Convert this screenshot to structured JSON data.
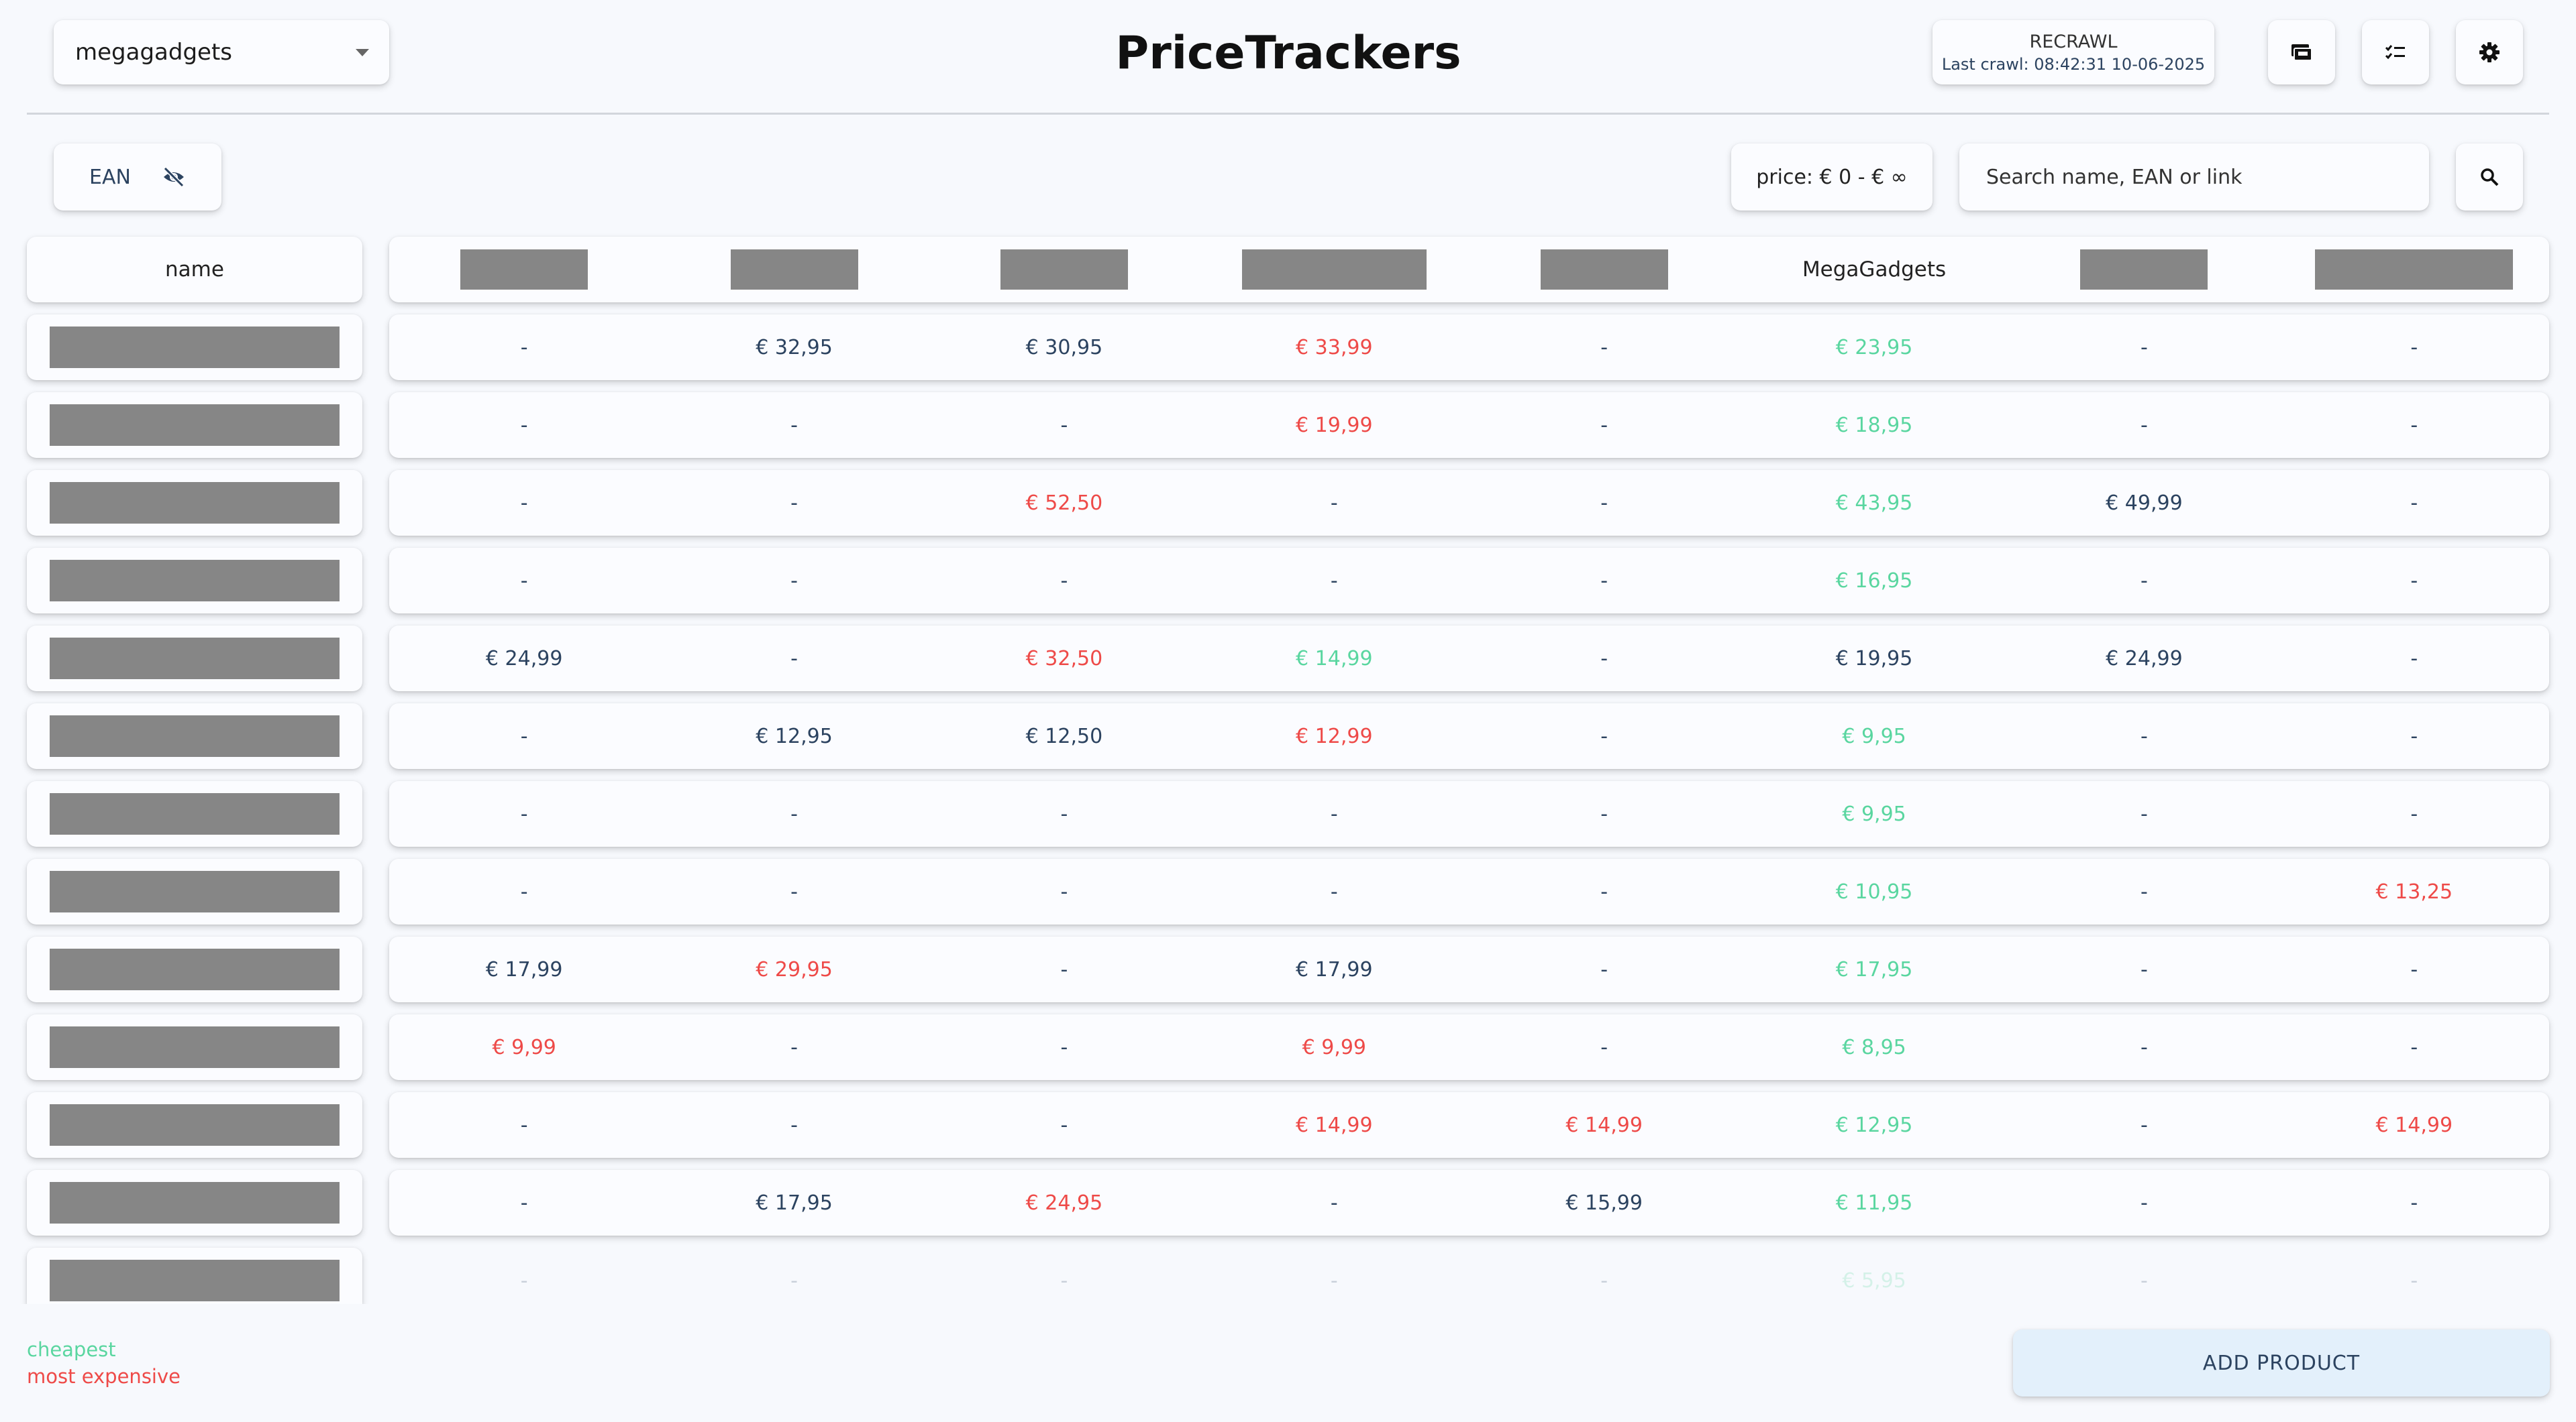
{
  "header": {
    "store_select": "megagadgets",
    "title": "PriceTrackers",
    "recrawl_label": "RECRAWL",
    "last_crawl": "Last crawl: 08:42:31 10-06-2025",
    "icons": [
      "card-icon",
      "checklist-icon",
      "gear-icon"
    ]
  },
  "toolbar": {
    "ean_label": "EAN",
    "ean_icon": "eye-off-icon",
    "price_filter": "price: € 0 - € ∞",
    "search_placeholder": "Search name, EAN or link",
    "search_icon": "search-icon"
  },
  "table": {
    "name_header": "name",
    "columns": [
      "",
      "",
      "",
      "",
      "",
      "MegaGadgets",
      "",
      ""
    ],
    "rows": [
      [
        [
          "-",
          "n"
        ],
        [
          "€ 32,95",
          "n"
        ],
        [
          "€ 30,95",
          "n"
        ],
        [
          "€ 33,99",
          "e"
        ],
        [
          "-",
          "n"
        ],
        [
          "€ 23,95",
          "c"
        ],
        [
          "-",
          "n"
        ],
        [
          "-",
          "n"
        ]
      ],
      [
        [
          "-",
          "n"
        ],
        [
          "-",
          "n"
        ],
        [
          "-",
          "n"
        ],
        [
          "€ 19,99",
          "e"
        ],
        [
          "-",
          "n"
        ],
        [
          "€ 18,95",
          "c"
        ],
        [
          "-",
          "n"
        ],
        [
          "-",
          "n"
        ]
      ],
      [
        [
          "-",
          "n"
        ],
        [
          "-",
          "n"
        ],
        [
          "€ 52,50",
          "e"
        ],
        [
          "-",
          "n"
        ],
        [
          "-",
          "n"
        ],
        [
          "€ 43,95",
          "c"
        ],
        [
          "€ 49,99",
          "n"
        ],
        [
          "-",
          "n"
        ]
      ],
      [
        [
          "-",
          "n"
        ],
        [
          "-",
          "n"
        ],
        [
          "-",
          "n"
        ],
        [
          "-",
          "n"
        ],
        [
          "-",
          "n"
        ],
        [
          "€ 16,95",
          "c"
        ],
        [
          "-",
          "n"
        ],
        [
          "-",
          "n"
        ]
      ],
      [
        [
          "€ 24,99",
          "n"
        ],
        [
          "-",
          "n"
        ],
        [
          "€ 32,50",
          "e"
        ],
        [
          "€ 14,99",
          "c"
        ],
        [
          "-",
          "n"
        ],
        [
          "€ 19,95",
          "n"
        ],
        [
          "€ 24,99",
          "n"
        ],
        [
          "-",
          "n"
        ]
      ],
      [
        [
          "-",
          "n"
        ],
        [
          "€ 12,95",
          "n"
        ],
        [
          "€ 12,50",
          "n"
        ],
        [
          "€ 12,99",
          "e"
        ],
        [
          "-",
          "n"
        ],
        [
          "€ 9,95",
          "c"
        ],
        [
          "-",
          "n"
        ],
        [
          "-",
          "n"
        ]
      ],
      [
        [
          "-",
          "n"
        ],
        [
          "-",
          "n"
        ],
        [
          "-",
          "n"
        ],
        [
          "-",
          "n"
        ],
        [
          "-",
          "n"
        ],
        [
          "€ 9,95",
          "c"
        ],
        [
          "-",
          "n"
        ],
        [
          "-",
          "n"
        ]
      ],
      [
        [
          "-",
          "n"
        ],
        [
          "-",
          "n"
        ],
        [
          "-",
          "n"
        ],
        [
          "-",
          "n"
        ],
        [
          "-",
          "n"
        ],
        [
          "€ 10,95",
          "c"
        ],
        [
          "-",
          "n"
        ],
        [
          "€ 13,25",
          "e"
        ]
      ],
      [
        [
          "€ 17,99",
          "n"
        ],
        [
          "€ 29,95",
          "e"
        ],
        [
          "-",
          "n"
        ],
        [
          "€ 17,99",
          "n"
        ],
        [
          "-",
          "n"
        ],
        [
          "€ 17,95",
          "c"
        ],
        [
          "-",
          "n"
        ],
        [
          "-",
          "n"
        ]
      ],
      [
        [
          "€ 9,99",
          "e"
        ],
        [
          "-",
          "n"
        ],
        [
          "-",
          "n"
        ],
        [
          "€ 9,99",
          "e"
        ],
        [
          "-",
          "n"
        ],
        [
          "€ 8,95",
          "c"
        ],
        [
          "-",
          "n"
        ],
        [
          "-",
          "n"
        ]
      ],
      [
        [
          "-",
          "n"
        ],
        [
          "-",
          "n"
        ],
        [
          "-",
          "n"
        ],
        [
          "€ 14,99",
          "e"
        ],
        [
          "€ 14,99",
          "e"
        ],
        [
          "€ 12,95",
          "c"
        ],
        [
          "-",
          "n"
        ],
        [
          "€ 14,99",
          "e"
        ]
      ],
      [
        [
          "-",
          "n"
        ],
        [
          "€ 17,95",
          "n"
        ],
        [
          "€ 24,95",
          "e"
        ],
        [
          "-",
          "n"
        ],
        [
          "€ 15,99",
          "n"
        ],
        [
          "€ 11,95",
          "c"
        ],
        [
          "-",
          "n"
        ],
        [
          "-",
          "n"
        ]
      ],
      [
        [
          "-",
          "n"
        ],
        [
          "-",
          "n"
        ],
        [
          "-",
          "n"
        ],
        [
          "-",
          "n"
        ],
        [
          "-",
          "n"
        ],
        [
          "€ 5,95",
          "c"
        ],
        [
          "-",
          "n"
        ],
        [
          "-",
          "n"
        ]
      ]
    ]
  },
  "legend": {
    "cheapest": "cheapest",
    "most_expensive": "most expensive"
  },
  "actions": {
    "add_product": "ADD PRODUCT"
  },
  "colors": {
    "cheapest": "#5ad6a0",
    "most_expensive": "#ee4a48",
    "normal": "#2c4360"
  }
}
